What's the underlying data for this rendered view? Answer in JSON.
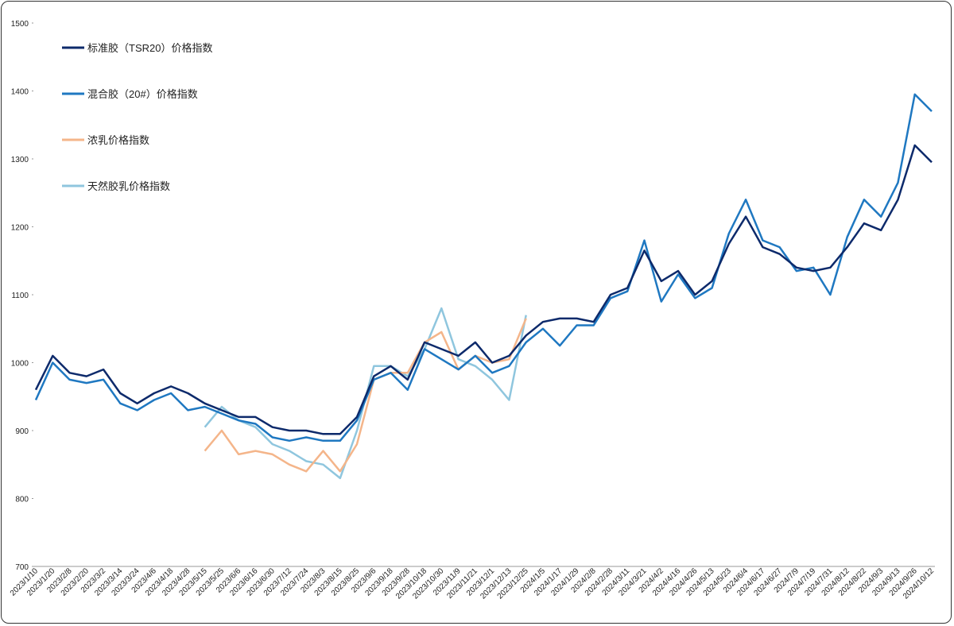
{
  "chart_data": {
    "type": "line",
    "categories": [
      "2023/1/10",
      "2023/1/20",
      "2023/2/8",
      "2023/2/20",
      "2023/3/2",
      "2023/3/14",
      "2023/3/24",
      "2023/4/6",
      "2023/4/18",
      "2023/4/28",
      "2023/5/15",
      "2023/5/25",
      "2023/6/6",
      "2023/6/16",
      "2023/6/30",
      "2023/7/12",
      "2023/7/24",
      "2023/8/3",
      "2023/8/15",
      "2023/8/25",
      "2023/9/6",
      "2023/9/18",
      "2023/9/28",
      "2023/10/18",
      "2023/10/30",
      "2023/11/9",
      "2023/11/21",
      "2023/12/1",
      "2023/12/13",
      "2023/12/25",
      "2024/1/5",
      "2024/1/17",
      "2024/1/29",
      "2024/2/8",
      "2024/2/28",
      "2024/3/11",
      "2024/3/21",
      "2024/4/2",
      "2024/4/16",
      "2024/4/26",
      "2024/5/13",
      "2024/5/23",
      "2024/6/4",
      "2024/6/17",
      "2024/6/27",
      "2024/7/9",
      "2024/7/19",
      "2024/7/31",
      "2024/8/12",
      "2024/8/22",
      "2024/9/3",
      "2024/9/13",
      "2024/9/26",
      "2024/10/12"
    ],
    "series": [
      {
        "name": "标准胶（TSR20）价格指数",
        "color": "#0d2a6b",
        "values": [
          960,
          1010,
          985,
          980,
          990,
          955,
          940,
          955,
          965,
          955,
          940,
          930,
          920,
          920,
          905,
          900,
          900,
          895,
          895,
          920,
          980,
          995,
          975,
          1030,
          1020,
          1010,
          1030,
          1000,
          1010,
          1040,
          1060,
          1065,
          1065,
          1060,
          1100,
          1110,
          1165,
          1120,
          1135,
          1100,
          1120,
          1175,
          1215,
          1170,
          1160,
          1140,
          1135,
          1140,
          1170,
          1205,
          1195,
          1240,
          1320,
          1295
        ]
      },
      {
        "name": "混合胶（20#）价格指数",
        "color": "#1f78c1",
        "values": [
          945,
          1000,
          975,
          970,
          975,
          940,
          930,
          945,
          955,
          930,
          935,
          925,
          915,
          910,
          890,
          885,
          890,
          885,
          885,
          915,
          975,
          985,
          960,
          1020,
          1005,
          990,
          1010,
          985,
          995,
          1030,
          1050,
          1025,
          1055,
          1055,
          1095,
          1105,
          1180,
          1090,
          1130,
          1095,
          1110,
          1190,
          1240,
          1180,
          1170,
          1135,
          1140,
          1100,
          1185,
          1240,
          1215,
          1265,
          1395,
          1370
        ]
      },
      {
        "name": "浓乳价格指数",
        "color": "#f4b58a",
        "values": [
          null,
          null,
          null,
          null,
          null,
          null,
          null,
          null,
          null,
          null,
          870,
          900,
          865,
          870,
          865,
          850,
          840,
          870,
          840,
          880,
          975,
          985,
          985,
          1030,
          1045,
          990,
          1010,
          1000,
          1005,
          1065,
          null,
          null,
          null,
          null,
          null,
          null,
          null,
          null,
          null,
          null,
          null,
          null,
          null,
          null,
          null,
          null,
          null,
          null,
          null,
          null,
          null,
          null,
          null,
          null
        ]
      },
      {
        "name": "天然胶乳价格指数",
        "color": "#8fc6de",
        "values": [
          null,
          null,
          null,
          null,
          null,
          null,
          null,
          null,
          null,
          null,
          905,
          935,
          915,
          905,
          880,
          870,
          855,
          850,
          830,
          900,
          995,
          995,
          980,
          1020,
          1080,
          1005,
          995,
          975,
          945,
          1070,
          null,
          null,
          null,
          null,
          null,
          null,
          null,
          null,
          null,
          null,
          null,
          null,
          null,
          null,
          null,
          null,
          null,
          null,
          null,
          null,
          null,
          null,
          null,
          null
        ]
      }
    ],
    "ylim": [
      700,
      1500
    ],
    "yticks": [
      700,
      800,
      900,
      1000,
      1100,
      1200,
      1300,
      1400,
      1500
    ],
    "grid": false,
    "legend": "top-left"
  }
}
